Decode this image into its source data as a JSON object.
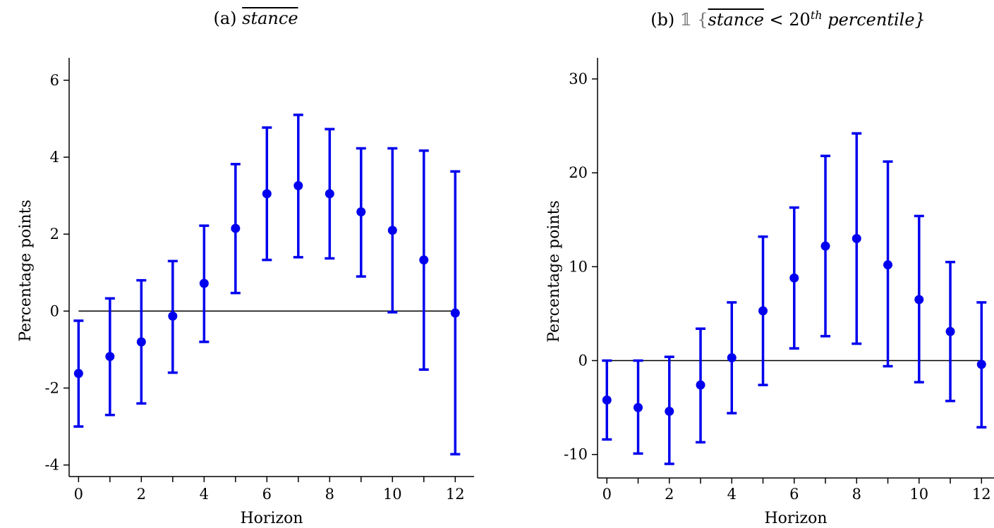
{
  "chart_data": [
    {
      "type": "scatter",
      "panel_label": "(a)",
      "title_variable": "stance",
      "xlabel": "Horizon",
      "ylabel": "Percentage points",
      "xlim": [
        -0.3,
        12.6
      ],
      "ylim": [
        -4.3,
        6.4
      ],
      "xticks": [
        0,
        2,
        4,
        6,
        8,
        10,
        12
      ],
      "yticks": [
        -4,
        -2,
        0,
        2,
        4,
        6
      ],
      "ytick_labels": [
        "-4",
        "-2",
        "0",
        "2",
        "4",
        "6"
      ],
      "zero_line": true,
      "color": "#0000ee",
      "x": [
        0,
        1,
        2,
        3,
        4,
        5,
        6,
        7,
        8,
        9,
        10,
        11,
        12
      ],
      "y": [
        -1.62,
        -1.18,
        -0.8,
        -0.13,
        0.72,
        2.15,
        3.05,
        3.26,
        3.05,
        2.58,
        2.1,
        1.33,
        -0.05
      ],
      "lower": [
        -3.0,
        -2.7,
        -2.4,
        -1.6,
        -0.8,
        0.47,
        1.33,
        1.4,
        1.37,
        0.9,
        -0.03,
        -1.52,
        -3.72
      ],
      "upper": [
        -0.25,
        0.33,
        0.8,
        1.3,
        2.22,
        3.82,
        4.77,
        5.1,
        4.73,
        4.23,
        4.23,
        4.17,
        3.63
      ]
    },
    {
      "type": "scatter",
      "panel_label": "(b)",
      "title_prefix": "𝟙 {",
      "title_variable": "stance",
      "title_middle": "< 20",
      "title_sup": "th",
      "title_suffix": "percentile}",
      "xlabel": "Horizon",
      "ylabel": "Percentage points",
      "xlim": [
        -0.3,
        12.4
      ],
      "ylim": [
        -12.5,
        31.5
      ],
      "xticks": [
        0,
        2,
        4,
        6,
        8,
        10,
        12
      ],
      "yticks": [
        -10,
        0,
        10,
        20,
        30
      ],
      "ytick_labels": [
        "-10",
        "0",
        "10",
        "20",
        "30"
      ],
      "zero_line": true,
      "color": "#0000ee",
      "x": [
        0,
        1,
        2,
        3,
        4,
        5,
        6,
        7,
        8,
        9,
        10,
        11,
        12
      ],
      "y": [
        -4.2,
        -5.0,
        -5.4,
        -2.6,
        0.3,
        5.3,
        8.8,
        12.2,
        13.0,
        10.2,
        6.5,
        3.1,
        -0.4
      ],
      "lower": [
        -8.4,
        -9.9,
        -11.0,
        -8.7,
        -5.6,
        -2.6,
        1.3,
        2.6,
        1.8,
        -0.6,
        -2.3,
        -4.3,
        -7.1
      ],
      "upper": [
        0.0,
        0.0,
        0.4,
        3.4,
        6.2,
        13.2,
        16.3,
        21.8,
        24.2,
        21.2,
        15.4,
        10.5,
        6.2
      ]
    }
  ]
}
